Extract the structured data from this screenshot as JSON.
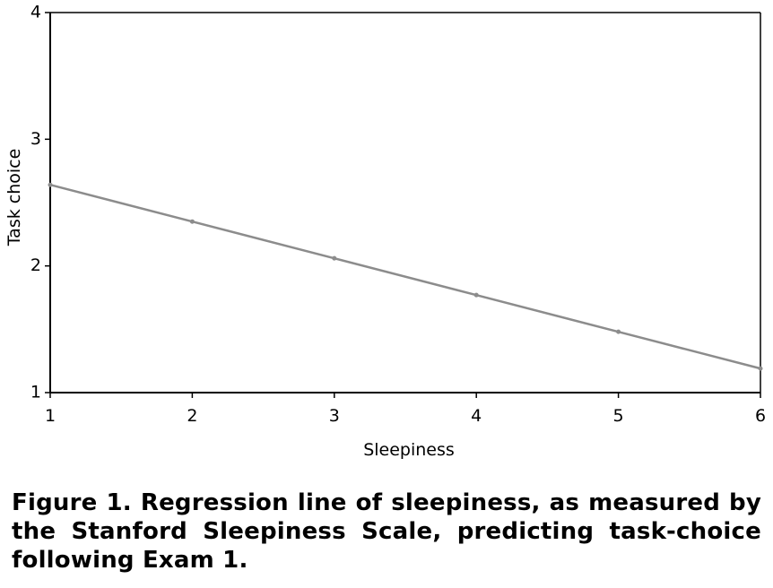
{
  "chart_data": {
    "type": "line",
    "xlabel": "Sleepiness",
    "ylabel": "Task choice",
    "xlim": [
      1,
      6
    ],
    "ylim": [
      1,
      4
    ],
    "x_ticks": [
      "1",
      "2",
      "3",
      "4",
      "5",
      "6"
    ],
    "y_ticks": [
      "1",
      "2",
      "3",
      "4"
    ],
    "grid": false,
    "legend": "none",
    "series": [
      {
        "x": [
          1,
          2,
          3,
          4,
          5,
          6
        ],
        "y": [
          2.64,
          2.35,
          2.06,
          1.77,
          1.48,
          1.19
        ],
        "color": "#8c8c8c"
      }
    ]
  },
  "caption": "Figure 1. Regression line of sleepiness, as measured by the Stanford Sleepiness Scale, predicting task-choice following Exam 1."
}
